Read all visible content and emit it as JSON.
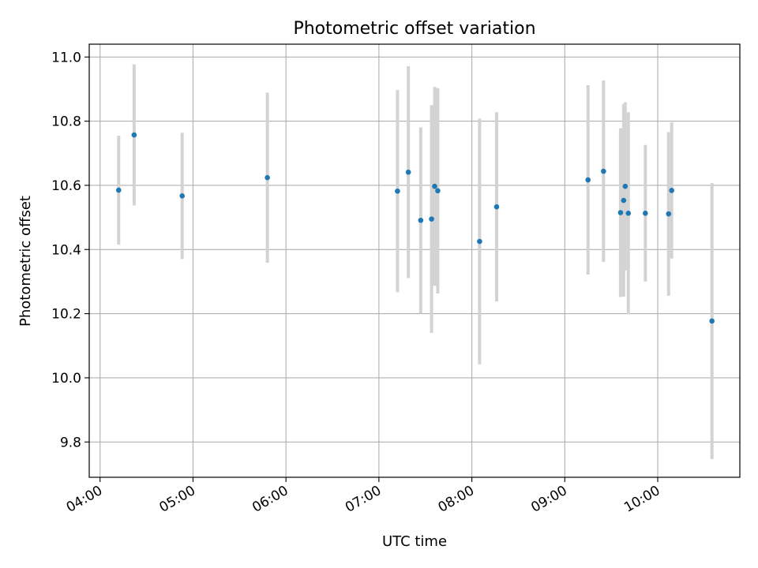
{
  "chart_data": {
    "type": "scatter",
    "title": "Photometric offset variation",
    "xlabel": "UTC time",
    "ylabel": "Photometric offset",
    "x_ticks": [
      "04:00",
      "05:00",
      "06:00",
      "07:00",
      "08:00",
      "09:00",
      "10:00"
    ],
    "y_ticks": [
      "9.8",
      "10.0",
      "10.2",
      "10.4",
      "10.6",
      "10.8",
      "11.0"
    ],
    "xlim": [
      "03:53",
      "10:53"
    ],
    "ylim": [
      9.69,
      11.04
    ],
    "grid": true,
    "point_color": "#1f77b4",
    "errorbar_color": "#d3d3d3",
    "points": [
      {
        "time": "04:12",
        "offset": 10.585,
        "err": 0.17
      },
      {
        "time": "04:22",
        "offset": 10.757,
        "err": 0.22
      },
      {
        "time": "04:53",
        "offset": 10.567,
        "err": 0.197
      },
      {
        "time": "05:48",
        "offset": 10.624,
        "err": 0.265
      },
      {
        "time": "07:12",
        "offset": 10.582,
        "err": 0.315
      },
      {
        "time": "07:19",
        "offset": 10.641,
        "err": 0.33
      },
      {
        "time": "07:27",
        "offset": 10.491,
        "err": 0.29
      },
      {
        "time": "07:34",
        "offset": 10.495,
        "err": 0.355
      },
      {
        "time": "07:36",
        "offset": 10.597,
        "err": 0.31
      },
      {
        "time": "07:38",
        "offset": 10.583,
        "err": 0.32
      },
      {
        "time": "08:05",
        "offset": 10.425,
        "err": 0.383
      },
      {
        "time": "08:16",
        "offset": 10.533,
        "err": 0.295
      },
      {
        "time": "09:15",
        "offset": 10.617,
        "err": 0.295
      },
      {
        "time": "09:25",
        "offset": 10.644,
        "err": 0.283
      },
      {
        "time": "09:36",
        "offset": 10.515,
        "err": 0.263
      },
      {
        "time": "09:38",
        "offset": 10.553,
        "err": 0.3
      },
      {
        "time": "09:39",
        "offset": 10.597,
        "err": 0.262
      },
      {
        "time": "09:41",
        "offset": 10.513,
        "err": 0.315
      },
      {
        "time": "09:52",
        "offset": 10.513,
        "err": 0.213
      },
      {
        "time": "10:07",
        "offset": 10.511,
        "err": 0.255
      },
      {
        "time": "10:09",
        "offset": 10.584,
        "err": 0.212
      },
      {
        "time": "10:35",
        "offset": 10.177,
        "err": 0.43
      }
    ]
  }
}
